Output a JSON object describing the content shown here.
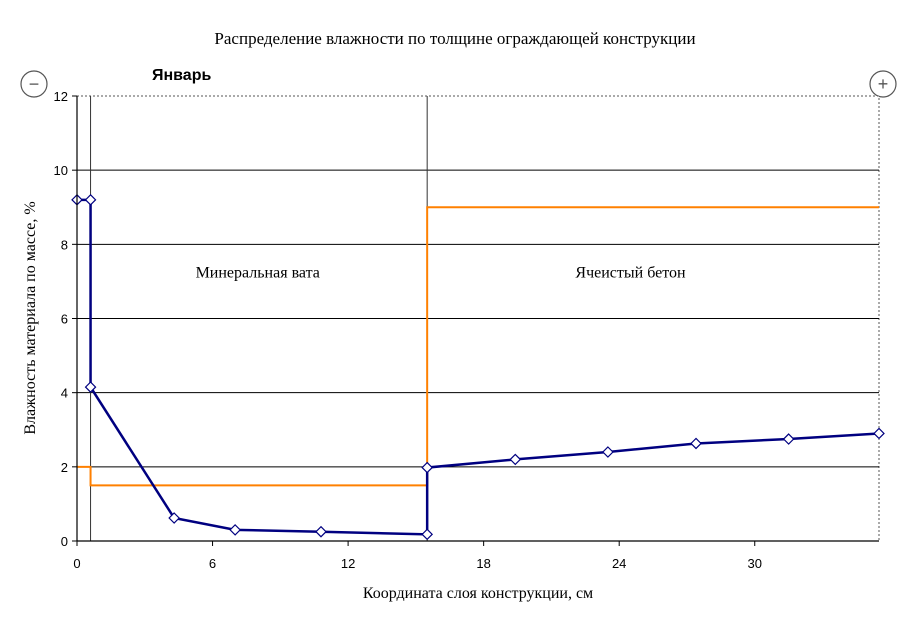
{
  "chart_data": {
    "type": "line",
    "title": "Распределение влажности по толщине ограждающей конструкции",
    "subtitle": "Январь",
    "xlabel": "Координата слоя конструкции, см",
    "ylabel": "Влажность материала по массе, %",
    "xlim": [
      0,
      35.5
    ],
    "ylim": [
      0,
      12
    ],
    "x_ticks": [
      "0",
      "6",
      "12",
      "18",
      "24",
      "30"
    ],
    "y_ticks": [
      "0",
      "2",
      "4",
      "6",
      "8",
      "10",
      "12"
    ],
    "grid": true,
    "layer_boundaries": [
      0.6,
      15.5
    ],
    "annotations": [
      {
        "text": "Минеральная вата",
        "x": 8,
        "y": 7.1
      },
      {
        "text": "Ячеистый бетон",
        "x": 24.5,
        "y": 7.1
      }
    ],
    "series": [
      {
        "color": "#000080",
        "markers": true,
        "x": [
          0,
          0.6,
          0.6,
          4.3,
          7.0,
          10.8,
          15.5,
          15.5,
          19.4,
          23.5,
          27.4,
          31.5,
          35.5
        ],
        "y": [
          9.2,
          9.2,
          4.15,
          0.62,
          0.3,
          0.25,
          0.18,
          1.98,
          2.2,
          2.4,
          2.63,
          2.75,
          2.9
        ]
      },
      {
        "color": "#ff8000",
        "markers": false,
        "x": [
          0,
          0.6,
          0.6,
          15.5,
          15.5,
          35.5
        ],
        "y": [
          2.0,
          2.0,
          1.5,
          1.5,
          9.0,
          9.0
        ]
      }
    ]
  },
  "controls": {
    "zoom_out_symbol": "−",
    "zoom_in_symbol": "+"
  }
}
